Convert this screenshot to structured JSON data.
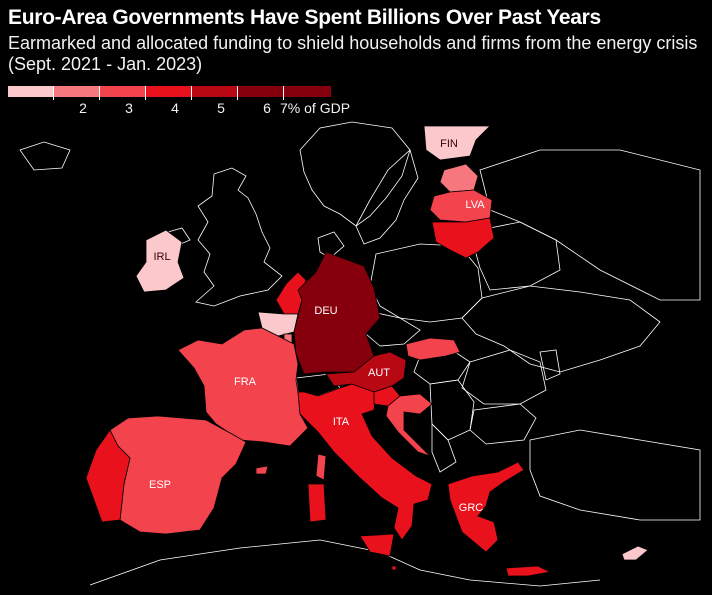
{
  "title": "Euro-Area Governments Have Spent Billions Over Past Years",
  "subtitle": "Earmarked and allocated funding to shield households and firms from the energy crisis (Sept. 2021 - Jan. 2023)",
  "legend": {
    "ticks": [
      "2",
      "3",
      "4",
      "5",
      "6",
      "7% of GDP"
    ],
    "colors": [
      "#fbc8cc",
      "#f7777f",
      "#f3434c",
      "#e8111c",
      "#b80814",
      "#85000c"
    ]
  },
  "colors": {
    "background": "#000000",
    "non_eurozone": "#000000",
    "border": "#ffffff"
  },
  "countries": [
    {
      "code": "FIN",
      "label": "FIN",
      "band": 0
    },
    {
      "code": "EST",
      "label": "",
      "band": 1
    },
    {
      "code": "LVA",
      "label": "LVA",
      "band": 2
    },
    {
      "code": "LTU",
      "label": "",
      "band": 3
    },
    {
      "code": "IRL",
      "label": "IRL",
      "band": 0
    },
    {
      "code": "NLD",
      "label": "",
      "band": 3
    },
    {
      "code": "BEL",
      "label": "",
      "band": 0
    },
    {
      "code": "LUX",
      "label": "",
      "band": 1
    },
    {
      "code": "DEU",
      "label": "DEU",
      "band": 5
    },
    {
      "code": "FRA",
      "label": "FRA",
      "band": 2
    },
    {
      "code": "ESP",
      "label": "ESP",
      "band": 2
    },
    {
      "code": "PRT",
      "label": "",
      "band": 3
    },
    {
      "code": "ITA",
      "label": "ITA",
      "band": 3
    },
    {
      "code": "AUT",
      "label": "AUT",
      "band": 4
    },
    {
      "code": "SVK",
      "label": "",
      "band": 2
    },
    {
      "code": "SVN",
      "label": "",
      "band": 3
    },
    {
      "code": "HRV",
      "label": "",
      "band": 2
    },
    {
      "code": "GRC",
      "label": "GRC",
      "band": 3
    },
    {
      "code": "MLT",
      "label": "",
      "band": 3
    },
    {
      "code": "CYP",
      "label": "",
      "band": 0
    }
  ]
}
